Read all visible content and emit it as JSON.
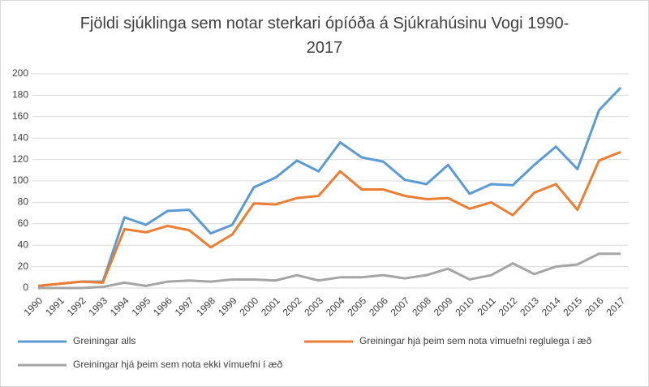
{
  "chart_data": {
    "type": "line",
    "title": "Fjöldi sjúklinga sem notar sterkari ópíóða á Sjúkrahúsinu Vogi 1990-2017",
    "categories": [
      "1990",
      "1991",
      "1992",
      "1993",
      "1994",
      "1995",
      "1996",
      "1997",
      "1998",
      "1999",
      "2000",
      "2001",
      "2002",
      "2003",
      "2004",
      "2005",
      "2006",
      "2007",
      "2008",
      "2009",
      "2010",
      "2011",
      "2012",
      "2013",
      "2014",
      "2015",
      "2016",
      "2017"
    ],
    "series": [
      {
        "name": "Greiningar alls",
        "color": "#5b9bd5",
        "values": [
          2,
          4,
          6,
          6,
          66,
          59,
          72,
          73,
          51,
          59,
          94,
          103,
          119,
          109,
          136,
          122,
          118,
          101,
          97,
          115,
          88,
          97,
          96,
          115,
          132,
          111,
          166,
          187
        ]
      },
      {
        "name": "Greiningar hjá þeim sem nota vímuefni reglulega í æð",
        "color": "#ed7d31",
        "values": [
          2,
          4,
          6,
          5,
          55,
          52,
          58,
          54,
          38,
          50,
          79,
          78,
          84,
          86,
          109,
          92,
          92,
          86,
          83,
          84,
          74,
          80,
          68,
          89,
          97,
          73,
          119,
          127
        ]
      },
      {
        "name": "Greiningar hjá þeim sem nota ekki vímuefni í æð",
        "color": "#a5a5a5",
        "values": [
          0,
          0,
          0,
          1,
          5,
          2,
          6,
          7,
          6,
          8,
          8,
          7,
          12,
          7,
          10,
          10,
          12,
          9,
          12,
          18,
          8,
          12,
          23,
          13,
          20,
          22,
          32,
          32
        ]
      }
    ],
    "ylim": [
      0,
      200
    ],
    "yticks": [
      0,
      20,
      40,
      60,
      80,
      100,
      120,
      140,
      160,
      180,
      200
    ],
    "grid": true
  }
}
